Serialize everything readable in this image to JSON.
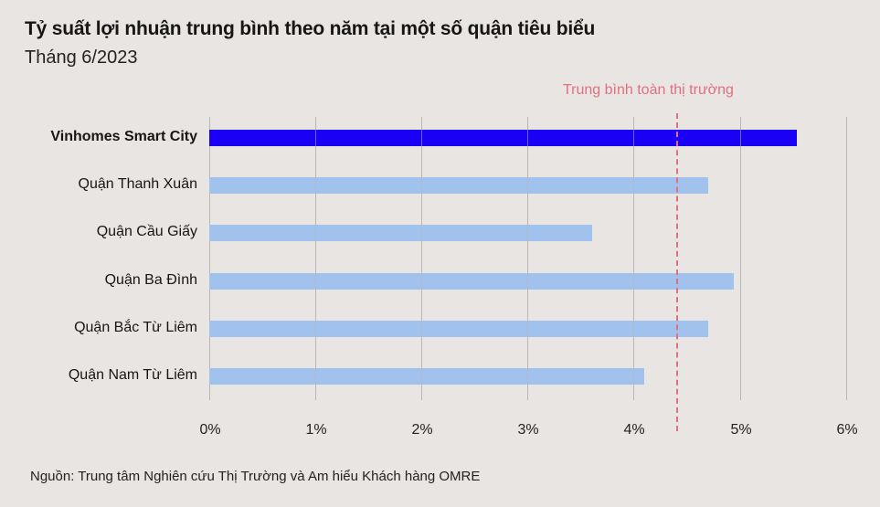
{
  "header": {
    "title": "Tỷ suất lợi nhuận trung bình theo năm tại một số quận tiêu biểu",
    "subtitle": "Tháng 6/2023"
  },
  "annotation": {
    "average_label": "Trung bình toàn thị trường",
    "average_value": 4.4,
    "color": "#e0707f"
  },
  "footer": {
    "source": "Nguồn: Trung tâm Nghiên cứu Thị Trường và Am hiểu Khách hàng OMRE"
  },
  "colors": {
    "highlight": "#1a00f5",
    "default": "#a2c2ee",
    "gridline": "#b9b6b3",
    "background": "#e8e5e2"
  },
  "chart_data": {
    "type": "bar",
    "orientation": "horizontal",
    "title": "Tỷ suất lợi nhuận trung bình theo năm tại một số quận tiêu biểu",
    "subtitle": "Tháng 6/2023",
    "categories": [
      "Vinhomes Smart City",
      "Quận Thanh Xuân",
      "Quận Cầu Giấy",
      "Quận Ba Đình",
      "Quận Bắc Từ Liêm",
      "Quận Nam Từ Liêm"
    ],
    "values": [
      5.54,
      4.7,
      3.61,
      4.94,
      4.7,
      4.1
    ],
    "unit": "%",
    "highlighted_category": "Vinhomes Smart City",
    "xlabel": "",
    "ylabel": "",
    "xlim": [
      0,
      6
    ],
    "xticks": [
      "0%",
      "1%",
      "2%",
      "3%",
      "4%",
      "5%",
      "6%"
    ],
    "reference_line": {
      "label": "Trung bình toàn thị trường",
      "value": 4.4,
      "style": "dashed"
    },
    "grid": true,
    "legend": null,
    "source": "Nguồn: Trung tâm Nghiên cứu Thị Trường và Am hiểu Khách hàng OMRE"
  }
}
